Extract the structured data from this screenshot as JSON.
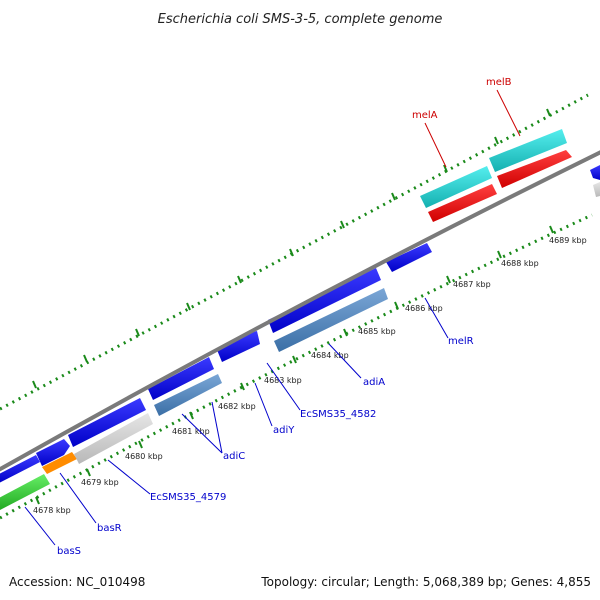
{
  "title": "Escherichia coli SMS-3-5, complete genome",
  "footer": {
    "accession": "Accession: NC_010498",
    "summary": "Topology: circular; Length: 5,068,389 bp; Genes: 4,855"
  },
  "colors": {
    "backbone": "#7a7a7a",
    "tick_dots": "#1a8a1a",
    "gene_blue": "#0000e6",
    "gene_steel": "#4f86bf",
    "gene_gray": "#cfcfcf",
    "gene_orange": "#ff8c00",
    "gene_green": "#33cc33",
    "gene_red": "#ff0000",
    "gene_cyan": "#22cccc",
    "label_blue": "#0000cc",
    "label_red": "#cc0000"
  },
  "kbp_labels": [
    "4678 kbp",
    "4679 kbp",
    "4680 kbp",
    "4681 kbp",
    "4682 kbp",
    "4683 kbp",
    "4684 kbp",
    "4685 kbp",
    "4686 kbp",
    "4687 kbp",
    "4688 kbp",
    "4689 kbp"
  ],
  "gene_labels": [
    {
      "id": "basS",
      "text": "basS",
      "color": "#0000cc"
    },
    {
      "id": "basR",
      "text": "basR",
      "color": "#0000cc"
    },
    {
      "id": "EcSMS35_4579",
      "text": "EcSMS35_4579",
      "color": "#0000cc"
    },
    {
      "id": "adiC",
      "text": "adiC",
      "color": "#0000cc"
    },
    {
      "id": "adiY",
      "text": "adiY",
      "color": "#0000cc"
    },
    {
      "id": "EcSMS35_4582",
      "text": "EcSMS35_4582",
      "color": "#0000cc"
    },
    {
      "id": "adiA",
      "text": "adiA",
      "color": "#0000cc"
    },
    {
      "id": "melR",
      "text": "melR",
      "color": "#0000cc"
    },
    {
      "id": "melA",
      "text": "melA",
      "color": "#cc0000"
    },
    {
      "id": "melB",
      "text": "melB",
      "color": "#cc0000"
    }
  ]
}
